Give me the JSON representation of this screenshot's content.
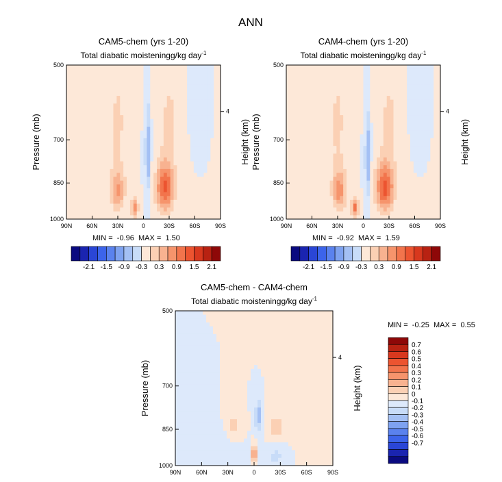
{
  "figure_title": "ANN",
  "color_scale": {
    "negative_colors": [
      "#0a0a80",
      "#1a24b0",
      "#2a46d6",
      "#3c64ea",
      "#5a82ee",
      "#7ea2f0",
      "#a4c0f4",
      "#c8dcf8"
    ],
    "near_zero_negative": "#dde9fb",
    "near_zero_positive": "#fde8d8",
    "positive_colors": [
      "#fbd0b4",
      "#f8b290",
      "#f6946c",
      "#f2744c",
      "#ec5430",
      "#d8381e",
      "#b82212",
      "#8e0808"
    ]
  },
  "colorbar_horizontal": {
    "tick_labels": [
      "-2.1",
      "-1.5",
      "-0.9",
      "-0.3",
      "0.3",
      "0.9",
      "1.5",
      "2.1"
    ]
  },
  "colorbar_vertical": {
    "tick_labels": [
      "0.7",
      "0.6",
      "0.5",
      "0.4",
      "0.3",
      "0.2",
      "0.1",
      "0",
      "-0.1",
      "-0.2",
      "-0.3",
      "-0.4",
      "-0.5",
      "-0.6",
      "-0.7"
    ]
  },
  "chart_data": [
    {
      "type": "heatmap",
      "title": "CAM5-chem (yrs 1-20)",
      "subtitle": "Total diabatic moistening",
      "units_label": "g/kg day",
      "units_exponent": "-1",
      "ylabel": "Pressure (mb)",
      "ylabel_right": "Height (km)",
      "x_ticks": [
        "90N",
        "60N",
        "30N",
        "0",
        "30S",
        "60S",
        "90S"
      ],
      "y_ticks": [
        "500",
        "700",
        "850",
        "1000"
      ],
      "right_ticks": [
        "4"
      ],
      "ylim": [
        1000,
        500
      ],
      "min_label": "MIN =",
      "min_value": "-0.96",
      "max_label": "MAX =",
      "max_value": "1.50",
      "features": [
        {
          "lat": -5,
          "p": 740,
          "v": -0.96,
          "slat": 3,
          "sp": 140
        },
        {
          "lat": 30,
          "p": 880,
          "v": 0.9,
          "slat": 8,
          "sp": 80
        },
        {
          "lat": -25,
          "p": 870,
          "v": 1.5,
          "slat": 10,
          "sp": 90
        },
        {
          "lat": 30,
          "p": 650,
          "v": 0.35,
          "slat": 12,
          "sp": 200
        },
        {
          "lat": -30,
          "p": 650,
          "v": 0.35,
          "slat": 14,
          "sp": 200
        },
        {
          "lat": -60,
          "p": 580,
          "v": -0.3,
          "slat": 6,
          "sp": 100
        },
        {
          "lat": 10,
          "p": 950,
          "v": 1.2,
          "slat": 4,
          "sp": 40
        }
      ]
    },
    {
      "type": "heatmap",
      "title": "CAM4-chem (yrs 1-20)",
      "subtitle": "Total diabatic moistening",
      "units_label": "g/kg day",
      "units_exponent": "-1",
      "ylabel": "Pressure (mb)",
      "ylabel_right": "Height (km)",
      "x_ticks": [
        "90N",
        "60N",
        "30N",
        "0",
        "30S",
        "60S",
        "90S"
      ],
      "y_ticks": [
        "500",
        "700",
        "850",
        "1000"
      ],
      "right_ticks": [
        "4"
      ],
      "ylim": [
        1000,
        500
      ],
      "min_label": "MIN =",
      "min_value": "-0.92",
      "max_label": "MAX =",
      "max_value": "1.59",
      "features": [
        {
          "lat": -5,
          "p": 760,
          "v": -0.92,
          "slat": 3,
          "sp": 150
        },
        {
          "lat": 28,
          "p": 880,
          "v": 1.0,
          "slat": 8,
          "sp": 80
        },
        {
          "lat": -25,
          "p": 870,
          "v": 1.59,
          "slat": 10,
          "sp": 90
        },
        {
          "lat": 30,
          "p": 650,
          "v": 0.35,
          "slat": 12,
          "sp": 200
        },
        {
          "lat": -30,
          "p": 650,
          "v": 0.35,
          "slat": 14,
          "sp": 200
        },
        {
          "lat": -60,
          "p": 580,
          "v": -0.3,
          "slat": 6,
          "sp": 100
        },
        {
          "lat": 10,
          "p": 950,
          "v": 1.3,
          "slat": 4,
          "sp": 40
        }
      ]
    },
    {
      "type": "heatmap",
      "title": "CAM5-chem - CAM4-chem",
      "subtitle": "Total diabatic moistening",
      "units_label": "g/kg day",
      "units_exponent": "-1",
      "ylabel": "Pressure (mb)",
      "ylabel_right": "Height (km)",
      "x_ticks": [
        "90N",
        "60N",
        "30N",
        "0",
        "30S",
        "60S",
        "90S"
      ],
      "y_ticks": [
        "500",
        "700",
        "850",
        "1000"
      ],
      "right_ticks": [
        "4"
      ],
      "ylim": [
        1000,
        500
      ],
      "min_label": "MIN =",
      "min_value": "-0.25",
      "max_label": "MAX =",
      "max_value": "0.55",
      "features": [
        {
          "lat": 0,
          "p": 950,
          "v": 0.55,
          "slat": 2,
          "sp": 40
        },
        {
          "lat": -5,
          "p": 800,
          "v": -0.25,
          "slat": 4,
          "sp": 60
        },
        {
          "lat": -25,
          "p": 840,
          "v": 0.2,
          "slat": 8,
          "sp": 40
        },
        {
          "lat": 25,
          "p": 840,
          "v": 0.15,
          "slat": 8,
          "sp": 50
        },
        {
          "lat": -25,
          "p": 960,
          "v": -0.15,
          "slat": 8,
          "sp": 40
        },
        {
          "lat": 40,
          "p": 900,
          "v": -0.1,
          "slat": 15,
          "sp": 60
        },
        {
          "lat": -40,
          "p": 650,
          "v": 0.05,
          "slat": 15,
          "sp": 120
        }
      ]
    }
  ]
}
